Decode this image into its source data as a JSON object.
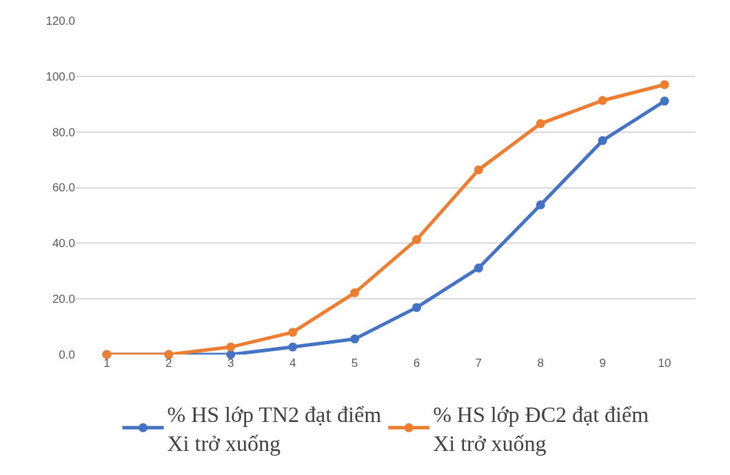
{
  "chart_data": {
    "type": "line",
    "categories": [
      "1",
      "2",
      "3",
      "4",
      "5",
      "6",
      "7",
      "8",
      "9",
      "10"
    ],
    "series": [
      {
        "name": "% HS lớp TN2 đạt điểm Xi trở xuống",
        "color": "#4472c4",
        "values": [
          0,
          0,
          0,
          2.7,
          5.6,
          16.9,
          31.1,
          53.8,
          76.9,
          91.1
        ]
      },
      {
        "name": "% HS lớp ĐC2 đạt điểm Xi trở xuống",
        "color": "#ed7d31",
        "values": [
          0,
          0,
          2.7,
          8.0,
          22.2,
          41.3,
          66.4,
          83.0,
          91.3,
          97.0
        ]
      }
    ],
    "ylim": [
      0,
      120
    ],
    "yticks": [
      {
        "value": 0,
        "label": "0.0"
      },
      {
        "value": 20,
        "label": "20.0"
      },
      {
        "value": 40,
        "label": "40.0"
      },
      {
        "value": 60,
        "label": "60.0"
      },
      {
        "value": 80,
        "label": "80.0"
      },
      {
        "value": 100,
        "label": "100.0"
      },
      {
        "value": 120,
        "label": "120.0"
      }
    ],
    "grid": "y",
    "legend": "bottom",
    "marker": "circle",
    "line_style": "solid"
  }
}
